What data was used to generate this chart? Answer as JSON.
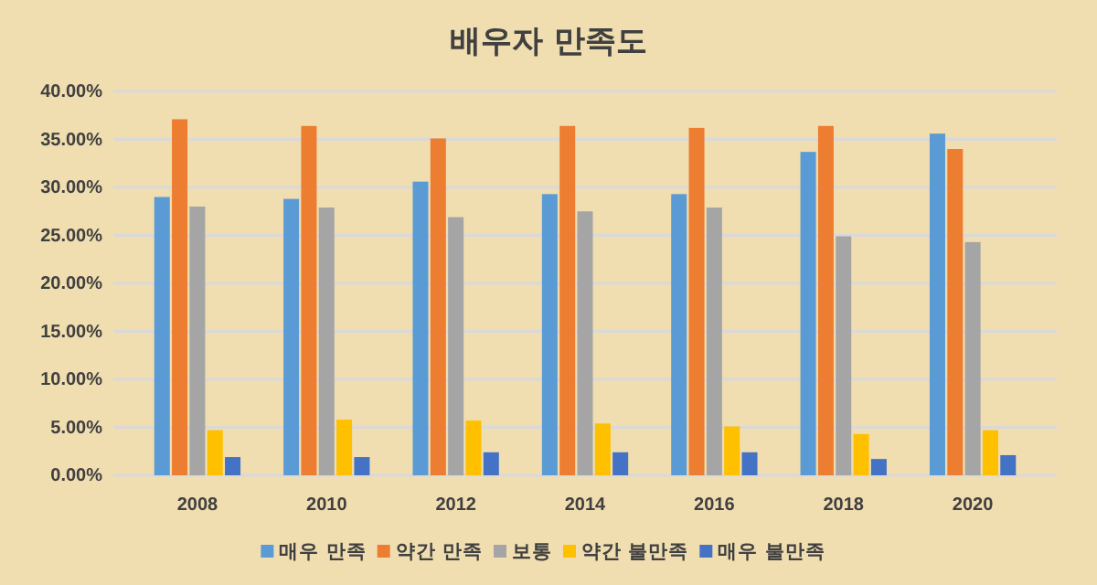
{
  "chart_data": {
    "type": "bar",
    "title": "배우자 만족도",
    "categories": [
      "2008",
      "2010",
      "2012",
      "2014",
      "2016",
      "2018",
      "2020"
    ],
    "series": [
      {
        "name": "매우 만족",
        "color": "#5b9bd5",
        "values": [
          29.0,
          28.8,
          30.6,
          29.3,
          29.3,
          33.7,
          35.6
        ]
      },
      {
        "name": "약간 만족",
        "color": "#ed7d31",
        "values": [
          37.1,
          36.4,
          35.1,
          36.4,
          36.2,
          36.4,
          34.0
        ]
      },
      {
        "name": "보통",
        "color": "#a5a5a5",
        "values": [
          28.0,
          27.9,
          26.9,
          27.5,
          27.9,
          24.9,
          24.3
        ]
      },
      {
        "name": "약간 불만족",
        "color": "#ffc000",
        "values": [
          4.7,
          5.8,
          5.7,
          5.4,
          5.1,
          4.3,
          4.7
        ]
      },
      {
        "name": "매우 불만족",
        "color": "#4472c4",
        "values": [
          1.9,
          1.9,
          2.4,
          2.4,
          2.4,
          1.7,
          2.1
        ]
      }
    ],
    "ylim": [
      0,
      40
    ],
    "yticks": [
      {
        "value": 0,
        "label": "0.00%"
      },
      {
        "value": 5,
        "label": "5.00%"
      },
      {
        "value": 10,
        "label": "10.00%"
      },
      {
        "value": 15,
        "label": "15.00%"
      },
      {
        "value": 20,
        "label": "20.00%"
      },
      {
        "value": 25,
        "label": "25.00%"
      },
      {
        "value": 30,
        "label": "30.00%"
      },
      {
        "value": 35,
        "label": "35.00%"
      },
      {
        "value": 40,
        "label": "40.00%"
      }
    ],
    "grid": "y",
    "legend": "bottom"
  }
}
